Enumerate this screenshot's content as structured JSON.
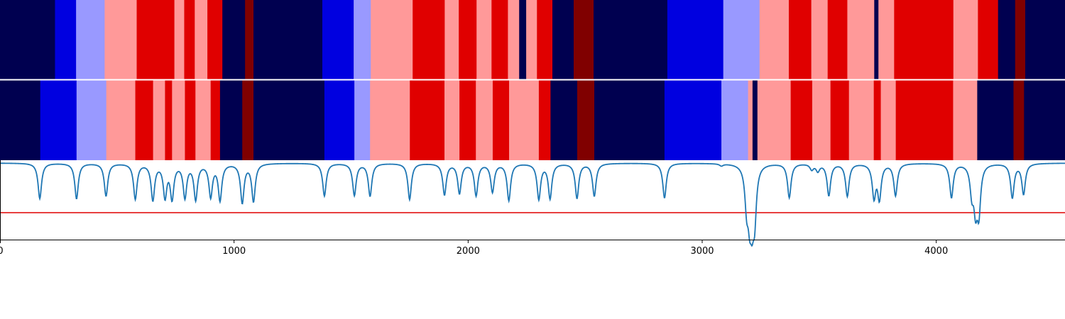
{
  "chart_data": [
    {
      "type": "heatmap",
      "panel": "top",
      "colormap": "seismic",
      "xlim": [
        0,
        4550
      ],
      "levels": {
        "navy": "#000050",
        "blue": "#0000e0",
        "lightblue": "#9999ff",
        "pink": "#ff9999",
        "red": "#e00000",
        "darkred": "#800000"
      },
      "segments": [
        [
          0,
          235,
          "navy"
        ],
        [
          235,
          325,
          "blue"
        ],
        [
          325,
          447,
          "lightblue"
        ],
        [
          447,
          584,
          "pink"
        ],
        [
          584,
          745,
          "red"
        ],
        [
          745,
          787,
          "pink"
        ],
        [
          787,
          832,
          "red"
        ],
        [
          832,
          886,
          "pink"
        ],
        [
          886,
          950,
          "red"
        ],
        [
          950,
          1047,
          "navy"
        ],
        [
          1047,
          1083,
          "darkred"
        ],
        [
          1083,
          1377,
          "navy"
        ],
        [
          1377,
          1511,
          "blue"
        ],
        [
          1511,
          1584,
          "lightblue"
        ],
        [
          1584,
          1763,
          "pink"
        ],
        [
          1763,
          1900,
          "red"
        ],
        [
          1900,
          1960,
          "pink"
        ],
        [
          1960,
          2036,
          "red"
        ],
        [
          2036,
          2100,
          "pink"
        ],
        [
          2100,
          2170,
          "red"
        ],
        [
          2170,
          2218,
          "pink"
        ],
        [
          2218,
          2248,
          "navy"
        ],
        [
          2248,
          2294,
          "pink"
        ],
        [
          2294,
          2360,
          "red"
        ],
        [
          2360,
          2451,
          "navy"
        ],
        [
          2451,
          2536,
          "darkred"
        ],
        [
          2536,
          2851,
          "navy"
        ],
        [
          2851,
          3090,
          "blue"
        ],
        [
          3090,
          3245,
          "lightblue"
        ],
        [
          3245,
          3370,
          "pink"
        ],
        [
          3370,
          3466,
          "red"
        ],
        [
          3466,
          3536,
          "pink"
        ],
        [
          3536,
          3620,
          "red"
        ],
        [
          3620,
          3735,
          "pink"
        ],
        [
          3735,
          3753,
          "navy"
        ],
        [
          3753,
          3820,
          "pink"
        ],
        [
          3820,
          4073,
          "red"
        ],
        [
          4073,
          4178,
          "pink"
        ],
        [
          4178,
          4264,
          "red"
        ],
        [
          4264,
          4337,
          "navy"
        ],
        [
          4337,
          4380,
          "darkred"
        ],
        [
          4380,
          4550,
          "navy"
        ]
      ]
    },
    {
      "type": "heatmap",
      "panel": "middle",
      "colormap": "seismic",
      "xlim": [
        0,
        4550
      ],
      "segments": [
        [
          0,
          172,
          "navy"
        ],
        [
          172,
          327,
          "blue"
        ],
        [
          327,
          454,
          "lightblue"
        ],
        [
          454,
          578,
          "pink"
        ],
        [
          578,
          654,
          "red"
        ],
        [
          654,
          705,
          "pink"
        ],
        [
          705,
          735,
          "red"
        ],
        [
          735,
          790,
          "pink"
        ],
        [
          790,
          835,
          "red"
        ],
        [
          835,
          900,
          "pink"
        ],
        [
          900,
          940,
          "red"
        ],
        [
          940,
          1035,
          "navy"
        ],
        [
          1035,
          1083,
          "darkred"
        ],
        [
          1083,
          1386,
          "navy"
        ],
        [
          1386,
          1514,
          "blue"
        ],
        [
          1514,
          1581,
          "lightblue"
        ],
        [
          1581,
          1751,
          "pink"
        ],
        [
          1751,
          1899,
          "red"
        ],
        [
          1899,
          1963,
          "pink"
        ],
        [
          1963,
          2033,
          "red"
        ],
        [
          2033,
          2105,
          "pink"
        ],
        [
          2105,
          2175,
          "red"
        ],
        [
          2175,
          2302,
          "pink"
        ],
        [
          2302,
          2352,
          "red"
        ],
        [
          2352,
          2466,
          "navy"
        ],
        [
          2466,
          2539,
          "darkred"
        ],
        [
          2539,
          2839,
          "navy"
        ],
        [
          2839,
          3082,
          "blue"
        ],
        [
          3082,
          3196,
          "lightblue"
        ],
        [
          3196,
          3215,
          "pink"
        ],
        [
          3215,
          3236,
          "navy"
        ],
        [
          3236,
          3378,
          "pink"
        ],
        [
          3378,
          3470,
          "red"
        ],
        [
          3470,
          3548,
          "pink"
        ],
        [
          3548,
          3627,
          "red"
        ],
        [
          3627,
          3733,
          "pink"
        ],
        [
          3733,
          3763,
          "red"
        ],
        [
          3763,
          3827,
          "pink"
        ],
        [
          3827,
          4072,
          "red"
        ],
        [
          4072,
          4175,
          "pink"
        ],
        [
          4175,
          4330,
          "navy"
        ],
        [
          4330,
          4375,
          "darkred"
        ],
        [
          4375,
          4550,
          "navy"
        ]
      ]
    },
    {
      "type": "line",
      "panel": "bottom",
      "xlim": [
        0,
        4550
      ],
      "ylim": [
        -1.1,
        0.02
      ],
      "threshold": {
        "y": -0.72,
        "color": "#e00000"
      },
      "series": [
        {
          "color": "#1f77b4",
          "baseline": -0.02,
          "dips": [
            [
              170,
              -0.52
            ],
            [
              327,
              -0.52
            ],
            [
              453,
              -0.48
            ],
            [
              578,
              -0.52
            ],
            [
              653,
              -0.53
            ],
            [
              705,
              -0.48
            ],
            [
              735,
              -0.5
            ],
            [
              790,
              -0.49
            ],
            [
              836,
              -0.52
            ],
            [
              900,
              -0.48
            ],
            [
              940,
              -0.53
            ],
            [
              1035,
              -0.57
            ],
            [
              1083,
              -0.55
            ],
            [
              1386,
              -0.48
            ],
            [
              1514,
              -0.47
            ],
            [
              1581,
              -0.48
            ],
            [
              1750,
              -0.53
            ],
            [
              1899,
              -0.46
            ],
            [
              1963,
              -0.44
            ],
            [
              2034,
              -0.47
            ],
            [
              2104,
              -0.42
            ],
            [
              2174,
              -0.54
            ],
            [
              2302,
              -0.52
            ],
            [
              2350,
              -0.51
            ],
            [
              2465,
              -0.51
            ],
            [
              2539,
              -0.48
            ],
            [
              2839,
              -0.51
            ],
            [
              3082,
              -0.05
            ],
            [
              3190,
              -0.55
            ],
            [
              3203,
              -0.6
            ],
            [
              3213,
              -0.58
            ],
            [
              3224,
              -0.7
            ],
            [
              3372,
              -0.5
            ],
            [
              3468,
              -0.1
            ],
            [
              3494,
              -0.12
            ],
            [
              3541,
              -0.47
            ],
            [
              3620,
              -0.48
            ],
            [
              3734,
              -0.48
            ],
            [
              3757,
              -0.5
            ],
            [
              3826,
              -0.47
            ],
            [
              4065,
              -0.5
            ],
            [
              4152,
              -0.4
            ],
            [
              4168,
              -0.58
            ],
            [
              4182,
              -0.66
            ],
            [
              4325,
              -0.5
            ],
            [
              4373,
              -0.45
            ]
          ]
        }
      ]
    }
  ],
  "x_ticks": [
    "0",
    "1000",
    "2000",
    "3000",
    "4000"
  ]
}
